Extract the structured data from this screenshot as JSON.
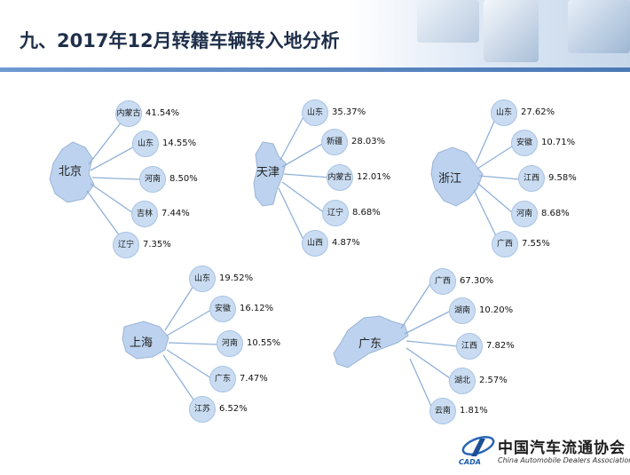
{
  "title": "九、2017年12月转籍车辆转入地分析",
  "logo": {
    "name": "中国汽车流通协会",
    "subtitle": "China Automobile Dealers Association",
    "abbr": "CADA"
  },
  "regions": [
    {
      "id": "beijing",
      "name": "北京",
      "destinations": [
        {
          "name": "内蒙古",
          "share": "41.54%"
        },
        {
          "name": "山东",
          "share": "14.55%"
        },
        {
          "name": "河南",
          "share": "8.50%"
        },
        {
          "name": "吉林",
          "share": "7.44%"
        },
        {
          "name": "辽宁",
          "share": "7.35%"
        }
      ]
    },
    {
      "id": "tianjin",
      "name": "天津",
      "destinations": [
        {
          "name": "山东",
          "share": "35.37%"
        },
        {
          "name": "新疆",
          "share": "28.03%"
        },
        {
          "name": "内蒙古",
          "share": "12.01%"
        },
        {
          "name": "辽宁",
          "share": "8.68%"
        },
        {
          "name": "山西",
          "share": "4.87%"
        }
      ]
    },
    {
      "id": "zhejiang",
      "name": "浙江",
      "destinations": [
        {
          "name": "山东",
          "share": "27.62%"
        },
        {
          "name": "安徽",
          "share": "10.71%"
        },
        {
          "name": "江西",
          "share": "9.58%"
        },
        {
          "name": "河南",
          "share": "8.68%"
        },
        {
          "name": "广西",
          "share": "7.55%"
        }
      ]
    },
    {
      "id": "shanghai",
      "name": "上海",
      "destinations": [
        {
          "name": "山东",
          "share": "19.52%"
        },
        {
          "name": "安徽",
          "share": "16.12%"
        },
        {
          "name": "河南",
          "share": "10.55%"
        },
        {
          "name": "广东",
          "share": "7.47%"
        },
        {
          "name": "江苏",
          "share": "6.52%"
        }
      ]
    },
    {
      "id": "guangdong",
      "name": "广东",
      "destinations": [
        {
          "name": "广西",
          "share": "67.30%"
        },
        {
          "name": "湖南",
          "share": "10.20%"
        },
        {
          "name": "江西",
          "share": "7.82%"
        },
        {
          "name": "湖北",
          "share": "2.57%"
        },
        {
          "name": "云南",
          "share": "1.81%"
        }
      ]
    }
  ]
}
